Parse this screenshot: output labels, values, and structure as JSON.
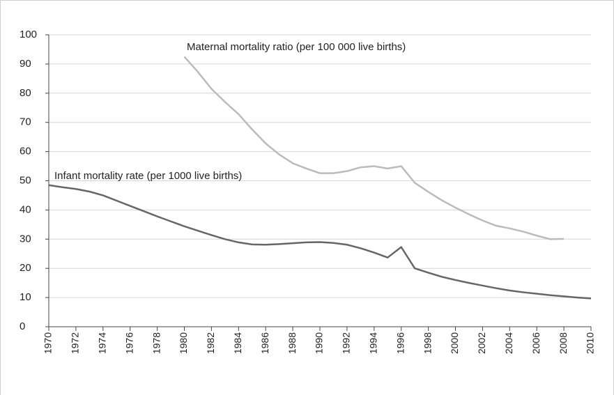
{
  "chart_data": {
    "type": "line",
    "x": [
      1970,
      1971,
      1972,
      1973,
      1974,
      1975,
      1976,
      1977,
      1978,
      1979,
      1980,
      1981,
      1982,
      1983,
      1984,
      1985,
      1986,
      1987,
      1988,
      1989,
      1990,
      1991,
      1992,
      1993,
      1994,
      1995,
      1996,
      1997,
      1998,
      1999,
      2000,
      2001,
      2002,
      2003,
      2004,
      2005,
      2006,
      2007,
      2008,
      2009,
      2010
    ],
    "series": [
      {
        "name": "Infant mortality rate (per 1000 live births)",
        "color": "#666666",
        "values": [
          48.5,
          47.8,
          47.2,
          46.3,
          45,
          43.2,
          41.4,
          39.6,
          37.8,
          36.1,
          34.4,
          32.9,
          31.4,
          30,
          28.9,
          28.2,
          28.1,
          28.3,
          28.6,
          28.9,
          29,
          28.7,
          28.1,
          26.9,
          25.4,
          23.7,
          27.3,
          20,
          18.5,
          17.1,
          16,
          15,
          14.1,
          13.2,
          12.4,
          11.8,
          11.3,
          10.8,
          10.4,
          10,
          9.7
        ]
      },
      {
        "name": "Maternal mortality ratio (per 100 000 live births)",
        "color": "#bbbbbb",
        "values": [
          null,
          null,
          null,
          null,
          null,
          null,
          null,
          null,
          null,
          null,
          92.5,
          87.3,
          81.5,
          77,
          72.8,
          67.6,
          62.8,
          59,
          56,
          54.2,
          52.6,
          52.6,
          53.3,
          54.6,
          55,
          54.2,
          55,
          49.3,
          46.2,
          43.3,
          40.8,
          38.5,
          36.4,
          34.6,
          33.7,
          32.6,
          31.2,
          30,
          30.1,
          null,
          null
        ]
      }
    ],
    "xlim": [
      1970,
      2010
    ],
    "xticks": [
      1970,
      1972,
      1974,
      1976,
      1978,
      1980,
      1982,
      1984,
      1986,
      1988,
      1990,
      1992,
      1994,
      1996,
      1998,
      2000,
      2002,
      2004,
      2006,
      2008,
      2010
    ],
    "ylim": [
      0,
      100
    ],
    "yticks": [
      0,
      10,
      20,
      30,
      40,
      50,
      60,
      70,
      80,
      90,
      100
    ],
    "grid": true
  }
}
